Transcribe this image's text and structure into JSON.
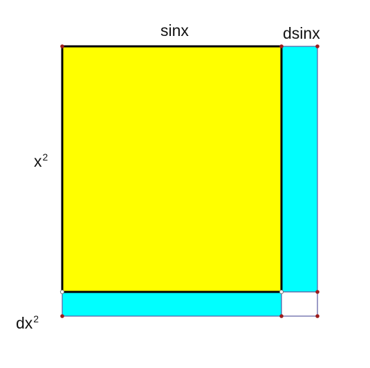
{
  "labels": {
    "top": "sinx",
    "top_right": "dsinx",
    "left_base": "x",
    "left_exp": "2",
    "bottom_left_base": "dx",
    "bottom_left_exp": "2"
  },
  "colors": {
    "main_square": "#ffff00",
    "strips": "#00ffff",
    "corner_square": "#ffffff",
    "outline": "#000000",
    "strip_outline": "#5a5aa0",
    "vertex": "#9c1c1c"
  }
}
